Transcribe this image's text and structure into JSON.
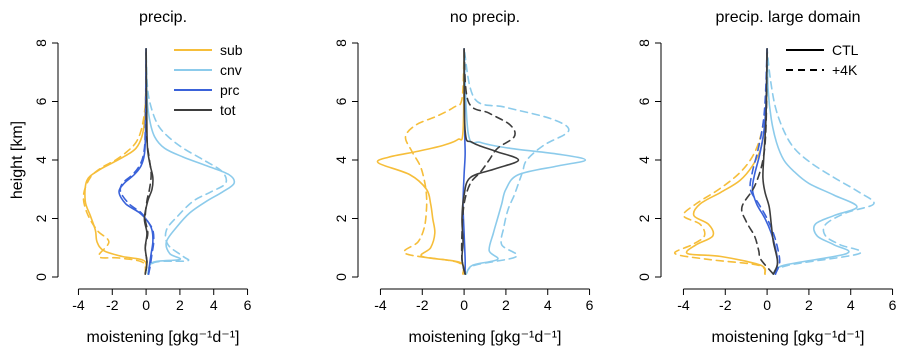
{
  "chart_data": [
    {
      "type": "line",
      "title": "precip.",
      "xlabel": "moistening [gkg⁻¹d⁻¹]",
      "ylabel": "height [km]",
      "xlim": [
        -4.5,
        6.5
      ],
      "ylim": [
        0,
        8
      ],
      "xticks": [
        "-4",
        "-2",
        "0",
        "2",
        "4",
        "6"
      ],
      "yticks": [
        "0",
        "2",
        "4",
        "6",
        "8"
      ],
      "legend": {
        "placement": "top-right",
        "entries": [
          {
            "label": "sub",
            "color": "#F6BE3A"
          },
          {
            "label": "cnv",
            "color": "#8CCBEB"
          },
          {
            "label": "prc",
            "color": "#3A62D9"
          },
          {
            "label": "tot",
            "color": "#3d3d3d"
          }
        ]
      },
      "series": [
        {
          "name": "sub",
          "run": "CTL",
          "color": "#F6BE3A",
          "dash": false,
          "x": [
            -0.05,
            -0.1,
            -1.4,
            -2.5,
            -2.9,
            -3.0,
            -3.3,
            -3.6,
            -3.5,
            -2.8,
            -2.0,
            -1.2,
            -0.6,
            -0.25,
            -0.08,
            -0.02,
            0
          ],
          "y": [
            0.1,
            0.55,
            0.7,
            0.9,
            1.2,
            1.6,
            2.1,
            2.6,
            3.3,
            3.65,
            3.9,
            4.15,
            4.4,
            4.8,
            5.4,
            6.2,
            7.8
          ]
        },
        {
          "name": "sub",
          "run": "+4K",
          "color": "#F6BE3A",
          "dash": true,
          "x": [
            -0.05,
            -0.2,
            -1.6,
            -2.8,
            -2.2,
            -2.9,
            -3.5,
            -3.7,
            -3.3,
            -2.6,
            -1.8,
            -1.1,
            -0.6,
            -0.3,
            -0.1,
            -0.02,
            0
          ],
          "y": [
            0.1,
            0.5,
            0.65,
            0.7,
            1.2,
            1.6,
            2.2,
            2.8,
            3.4,
            3.75,
            4.0,
            4.3,
            4.6,
            5.0,
            5.6,
            6.3,
            7.8
          ]
        },
        {
          "name": "cnv",
          "run": "CTL",
          "color": "#8CCBEB",
          "dash": false,
          "x": [
            0.1,
            0.4,
            2.0,
            1.4,
            1.2,
            1.8,
            2.6,
            3.6,
            4.5,
            5.2,
            4.9,
            3.6,
            2.2,
            1.1,
            0.5,
            0.2,
            0.05,
            0
          ],
          "y": [
            0.1,
            0.5,
            0.6,
            0.8,
            1.2,
            1.7,
            2.2,
            2.6,
            2.9,
            3.2,
            3.5,
            3.8,
            4.1,
            4.4,
            4.8,
            5.4,
            6.2,
            7.8
          ]
        },
        {
          "name": "cnv",
          "run": "+4K",
          "color": "#8CCBEB",
          "dash": true,
          "x": [
            0.1,
            0.5,
            2.4,
            2.2,
            1.3,
            1.2,
            1.9,
            2.8,
            3.8,
            4.7,
            4.5,
            3.4,
            2.2,
            1.3,
            0.7,
            0.3,
            0.08,
            0
          ],
          "y": [
            0.1,
            0.5,
            0.55,
            0.7,
            1.1,
            1.6,
            2.1,
            2.6,
            2.9,
            3.2,
            3.6,
            4.0,
            4.4,
            4.8,
            5.2,
            5.8,
            6.5,
            7.8
          ]
        },
        {
          "name": "prc",
          "run": "CTL",
          "color": "#3A62D9",
          "dash": false,
          "x": [
            0.15,
            0.2,
            0.3,
            0.4,
            0.35,
            0.1,
            -0.4,
            -1.2,
            -1.6,
            -1.3,
            -0.7,
            -0.3,
            -0.1,
            -0.03,
            0
          ],
          "y": [
            0.1,
            0.4,
            0.8,
            1.2,
            1.6,
            1.9,
            2.2,
            2.5,
            2.9,
            3.2,
            3.5,
            3.8,
            4.2,
            5.0,
            7.8
          ]
        },
        {
          "name": "prc",
          "run": "+4K",
          "color": "#3A62D9",
          "dash": true,
          "x": [
            0.15,
            0.25,
            0.35,
            0.45,
            0.4,
            0.1,
            -0.3,
            -1.0,
            -1.5,
            -1.4,
            -0.8,
            -0.4,
            -0.15,
            -0.05,
            0
          ],
          "y": [
            0.1,
            0.4,
            0.8,
            1.2,
            1.6,
            1.9,
            2.2,
            2.5,
            2.9,
            3.2,
            3.5,
            3.8,
            4.2,
            5.0,
            7.8
          ]
        },
        {
          "name": "tot",
          "run": "CTL",
          "color": "#3d3d3d",
          "dash": false,
          "x": [
            -0.05,
            0.05,
            -0.05,
            0.05,
            -0.1,
            0.1,
            0.35,
            0.4,
            0.25,
            0.1,
            0.05,
            0
          ],
          "y": [
            0.1,
            0.5,
            1.0,
            1.5,
            2.0,
            2.6,
            3.0,
            3.4,
            3.8,
            4.3,
            5.0,
            7.8
          ]
        },
        {
          "name": "tot",
          "run": "+4K",
          "color": "#3d3d3d",
          "dash": true,
          "x": [
            -0.05,
            0.05,
            -0.05,
            0.1,
            -0.05,
            0.05,
            0.2,
            0.3,
            0.2,
            0.08,
            0.02,
            0
          ],
          "y": [
            0.1,
            0.5,
            1.0,
            1.5,
            2.0,
            2.6,
            3.0,
            3.5,
            4.0,
            4.5,
            5.2,
            7.8
          ]
        }
      ]
    },
    {
      "type": "line",
      "title": "no precip.",
      "xlabel": "moistening [gkg⁻¹d⁻¹]",
      "xlim": [
        -4.5,
        6.5
      ],
      "ylim": [
        0,
        8
      ],
      "xticks": [
        "-4",
        "-2",
        "0",
        "2",
        "4",
        "6"
      ],
      "yticks": [
        "0",
        "2",
        "4",
        "6",
        "8"
      ],
      "series": [
        {
          "name": "sub",
          "run": "CTL",
          "color": "#F6BE3A",
          "dash": false,
          "x": [
            -0.05,
            -0.2,
            -2.0,
            -1.6,
            -1.4,
            -1.5,
            -1.6,
            -1.8,
            -2.6,
            -4.1,
            -3.6,
            -2.2,
            -1.0,
            -0.3,
            -0.05,
            0
          ],
          "y": [
            0.1,
            0.5,
            0.7,
            1.0,
            1.5,
            2.0,
            2.5,
            3.0,
            3.5,
            3.9,
            4.1,
            4.3,
            4.5,
            4.7,
            5.0,
            7.8
          ]
        },
        {
          "name": "sub",
          "run": "+4K",
          "color": "#F6BE3A",
          "dash": true,
          "x": [
            -0.05,
            -0.3,
            -2.8,
            -2.2,
            -1.9,
            -1.8,
            -1.8,
            -1.9,
            -2.1,
            -2.5,
            -2.8,
            -2.3,
            -1.3,
            -0.5,
            -0.1,
            0
          ],
          "y": [
            0.1,
            0.5,
            0.8,
            1.2,
            1.7,
            2.3,
            2.8,
            3.3,
            3.8,
            4.3,
            4.8,
            5.2,
            5.5,
            5.8,
            6.1,
            7.8
          ]
        },
        {
          "name": "cnv",
          "run": "CTL",
          "color": "#8CCBEB",
          "dash": false,
          "x": [
            0.1,
            0.4,
            1.6,
            1.2,
            1.4,
            1.6,
            1.8,
            2.0,
            2.6,
            4.5,
            5.8,
            4.5,
            2.2,
            0.8,
            0.2,
            0
          ],
          "y": [
            0.1,
            0.4,
            0.6,
            0.9,
            1.5,
            2.0,
            2.5,
            3.0,
            3.5,
            3.8,
            4.0,
            4.2,
            4.4,
            4.6,
            4.9,
            7.8
          ]
        },
        {
          "name": "cnv",
          "run": "+4K",
          "color": "#8CCBEB",
          "dash": true,
          "x": [
            0.1,
            0.5,
            2.5,
            1.8,
            1.9,
            2.1,
            2.4,
            2.6,
            2.8,
            3.0,
            3.8,
            5.0,
            4.2,
            2.0,
            0.5,
            0
          ],
          "y": [
            0.1,
            0.4,
            0.7,
            1.1,
            1.7,
            2.3,
            2.8,
            3.2,
            3.6,
            4.0,
            4.5,
            5.0,
            5.4,
            5.8,
            6.1,
            7.8
          ]
        },
        {
          "name": "prc",
          "run": "CTL",
          "color": "#3A62D9",
          "dash": false,
          "x": [
            0.05,
            0.05,
            0,
            -0.05,
            0,
            0.05,
            0.03,
            0
          ],
          "y": [
            0.1,
            0.6,
            1.5,
            2.5,
            3.5,
            4.2,
            5.0,
            7.8
          ]
        },
        {
          "name": "tot",
          "run": "CTL",
          "color": "#3d3d3d",
          "dash": false,
          "x": [
            0.05,
            -0.1,
            -0.05,
            -0.1,
            0,
            0.3,
            1.5,
            2.6,
            1.5,
            0.4,
            0.05,
            0
          ],
          "y": [
            0.1,
            0.6,
            1.2,
            2.0,
            2.8,
            3.4,
            3.7,
            4.0,
            4.3,
            4.6,
            5.0,
            7.8
          ]
        },
        {
          "name": "tot",
          "run": "+4K",
          "color": "#3d3d3d",
          "dash": true,
          "x": [
            0.05,
            -0.1,
            -0.1,
            0,
            0.3,
            0.8,
            1.2,
            1.6,
            2.4,
            2.2,
            1.2,
            0.2,
            0
          ],
          "y": [
            0.1,
            0.6,
            1.5,
            2.5,
            3.2,
            3.6,
            4.0,
            4.4,
            4.8,
            5.2,
            5.6,
            6.0,
            7.8
          ]
        }
      ]
    },
    {
      "type": "line",
      "title": "precip. large domain",
      "xlabel": "moistening [gkg⁻¹d⁻¹]",
      "xlim": [
        -4.5,
        6.5
      ],
      "ylim": [
        0,
        8
      ],
      "xticks": [
        "-4",
        "-2",
        "0",
        "2",
        "4",
        "6"
      ],
      "yticks": [
        "0",
        "2",
        "4",
        "6",
        "8"
      ],
      "legend": {
        "placement": "top-right",
        "entries": [
          {
            "label": "CTL",
            "dash": false
          },
          {
            "label": "+4K",
            "dash": true
          }
        ]
      },
      "series": [
        {
          "name": "sub",
          "run": "CTL",
          "color": "#F6BE3A",
          "dash": false,
          "x": [
            -0.1,
            -0.3,
            -2.2,
            -3.8,
            -3.4,
            -2.6,
            -2.8,
            -3.5,
            -3.2,
            -2.2,
            -1.3,
            -0.7,
            -0.3,
            -0.1,
            -0.02,
            0
          ],
          "y": [
            0.1,
            0.4,
            0.7,
            0.8,
            1.1,
            1.4,
            1.8,
            2.1,
            2.5,
            2.9,
            3.3,
            3.8,
            4.4,
            5.2,
            6.2,
            7.8
          ]
        },
        {
          "name": "sub",
          "run": "+4K",
          "color": "#F6BE3A",
          "dash": true,
          "x": [
            -0.1,
            -0.4,
            -2.8,
            -4.4,
            -3.6,
            -3.0,
            -3.2,
            -4.0,
            -3.4,
            -2.3,
            -1.4,
            -0.8,
            -0.4,
            -0.15,
            -0.05,
            0
          ],
          "y": [
            0.1,
            0.4,
            0.6,
            0.8,
            1.1,
            1.4,
            1.8,
            2.1,
            2.5,
            3.0,
            3.5,
            4.0,
            4.6,
            5.4,
            6.3,
            7.8
          ]
        },
        {
          "name": "cnv",
          "run": "CTL",
          "color": "#8CCBEB",
          "dash": false,
          "x": [
            0.3,
            0.8,
            3.8,
            3.2,
            2.4,
            2.3,
            3.2,
            4.3,
            3.2,
            2.0,
            1.3,
            0.8,
            0.45,
            0.2,
            0.05,
            0
          ],
          "y": [
            0.1,
            0.4,
            0.8,
            1.1,
            1.4,
            1.8,
            2.1,
            2.4,
            2.8,
            3.2,
            3.6,
            4.0,
            4.6,
            5.4,
            6.4,
            7.8
          ]
        },
        {
          "name": "cnv",
          "run": "+4K",
          "color": "#8CCBEB",
          "dash": true,
          "x": [
            0.3,
            1.0,
            4.4,
            3.5,
            2.8,
            2.8,
            3.8,
            5.1,
            4.4,
            3.2,
            2.1,
            1.3,
            0.8,
            0.4,
            0.15,
            0
          ],
          "y": [
            0.1,
            0.4,
            0.8,
            1.1,
            1.4,
            1.8,
            2.2,
            2.5,
            2.9,
            3.4,
            3.9,
            4.4,
            5.0,
            5.8,
            6.8,
            7.8
          ]
        },
        {
          "name": "prc",
          "run": "CTL",
          "color": "#3A62D9",
          "dash": false,
          "x": [
            0.4,
            0.5,
            0.4,
            0.2,
            -0.1,
            -0.5,
            -0.7,
            -0.6,
            -0.35,
            -0.15,
            -0.05,
            0
          ],
          "y": [
            0.1,
            0.5,
            1.0,
            1.5,
            2.0,
            2.5,
            3.0,
            3.5,
            4.2,
            5.0,
            6.0,
            7.8
          ]
        },
        {
          "name": "prc",
          "run": "+4K",
          "color": "#3A62D9",
          "dash": true,
          "x": [
            0.4,
            0.6,
            0.5,
            0.3,
            0,
            -0.4,
            -0.8,
            -0.7,
            -0.45,
            -0.2,
            -0.08,
            0
          ],
          "y": [
            0.1,
            0.5,
            1.0,
            1.5,
            2.0,
            2.5,
            3.0,
            3.6,
            4.3,
            5.2,
            6.2,
            7.8
          ]
        },
        {
          "name": "tot",
          "run": "CTL",
          "color": "#3d3d3d",
          "dash": false,
          "x": [
            0.3,
            0.5,
            0.3,
            0.2,
            0.1,
            -0.1,
            -0.2,
            -0.15,
            -0.05,
            0
          ],
          "y": [
            0.1,
            0.5,
            1.2,
            1.8,
            2.4,
            2.9,
            3.4,
            4.2,
            5.5,
            7.8
          ]
        },
        {
          "name": "tot",
          "run": "+4K",
          "color": "#3d3d3d",
          "dash": true,
          "x": [
            0.3,
            -0.3,
            -0.4,
            -0.6,
            -1.0,
            -1.2,
            -0.6,
            -0.2,
            -0.05,
            0
          ],
          "y": [
            0.1,
            0.6,
            0.9,
            1.4,
            1.9,
            2.4,
            3.1,
            4.0,
            5.2,
            7.8
          ]
        }
      ]
    }
  ]
}
